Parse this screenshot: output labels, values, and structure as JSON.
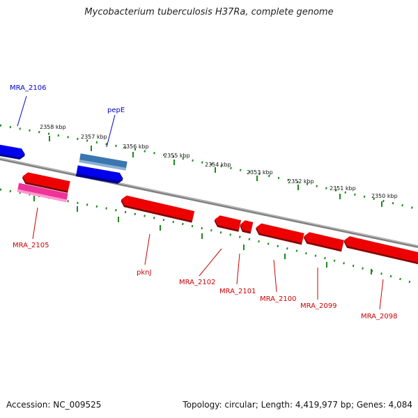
{
  "title": "Mycobacterium tuberculosis H37Ra, complete genome",
  "footer": {
    "accession": "Accession: NC_009525",
    "info": "Topology: circular; Length: 4,419,977 bp; Genes: 4,084"
  },
  "colors": {
    "forward_gene": "#0000ee",
    "reverse_gene": "#ee0000",
    "pseudo_gene": "#ee3399",
    "highlight_gene": "#3a76b0",
    "backbone": "#808080",
    "tick": "#1a8a1a",
    "forward_label": "#0000cc",
    "reverse_label": "#cc0000"
  },
  "scale_labels": [
    "2358 kbp",
    "2357 kbp",
    "2356 kbp",
    "2355 kbp",
    "2354 kbp",
    "2353 kbp",
    "2352 kbp",
    "2351 kbp",
    "2350 kbp"
  ],
  "genes": [
    {
      "name": "MRA_2106",
      "strand": "forward"
    },
    {
      "name": "pepE",
      "strand": "forward"
    },
    {
      "name": "MRA_2105",
      "strand": "reverse"
    },
    {
      "name": "pknJ",
      "strand": "reverse"
    },
    {
      "name": "MRA_2102",
      "strand": "reverse"
    },
    {
      "name": "MRA_2101",
      "strand": "reverse"
    },
    {
      "name": "MRA_2100",
      "strand": "reverse"
    },
    {
      "name": "MRA_2099",
      "strand": "reverse"
    },
    {
      "name": "MRA_2098",
      "strand": "reverse"
    }
  ]
}
